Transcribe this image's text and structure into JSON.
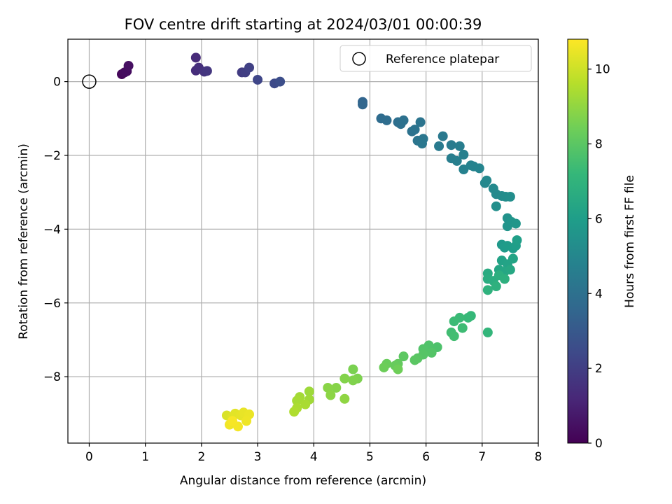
{
  "chart_data": {
    "type": "scatter",
    "title": "FOV centre drift starting at 2024/03/01 00:00:39",
    "xlabel": "Angular distance from reference (arcmin)",
    "ylabel": "Rotation from reference (arcmin)",
    "xlim": [
      -0.38,
      8.0
    ],
    "ylim": [
      -9.8,
      1.15
    ],
    "xticks": [
      0,
      1,
      2,
      3,
      4,
      5,
      6,
      7,
      8
    ],
    "yticks": [
      0,
      -2,
      -4,
      -6,
      -8
    ],
    "grid": true,
    "legend": {
      "position": "top-right",
      "entries": [
        "Reference platepar"
      ]
    },
    "reference_point": {
      "x": 0,
      "y": 0
    },
    "colorbar": {
      "label": "Hours from first FF file",
      "colormap": "viridis",
      "range": [
        0,
        10.8
      ],
      "ticks": [
        0,
        2,
        4,
        6,
        8,
        10
      ]
    },
    "colormap_stops": [
      "#440154",
      "#482878",
      "#3e4989",
      "#31688e",
      "#26828e",
      "#1f9e89",
      "#35b779",
      "#6ece58",
      "#b5de2b",
      "#fde725"
    ],
    "points": [
      {
        "x": 0.58,
        "y": 0.2,
        "t": 0.2
      },
      {
        "x": 0.63,
        "y": 0.25,
        "t": 0.3
      },
      {
        "x": 0.67,
        "y": 0.28,
        "t": 0.35
      },
      {
        "x": 0.7,
        "y": 0.43,
        "t": 0.45
      },
      {
        "x": 1.9,
        "y": 0.65,
        "t": 1.3
      },
      {
        "x": 1.9,
        "y": 0.3,
        "t": 1.4
      },
      {
        "x": 1.95,
        "y": 0.38,
        "t": 1.45
      },
      {
        "x": 2.05,
        "y": 0.27,
        "t": 1.6
      },
      {
        "x": 2.1,
        "y": 0.29,
        "t": 1.7
      },
      {
        "x": 2.72,
        "y": 0.25,
        "t": 1.9
      },
      {
        "x": 2.78,
        "y": 0.25,
        "t": 2.0
      },
      {
        "x": 2.85,
        "y": 0.38,
        "t": 2.1
      },
      {
        "x": 3.0,
        "y": 0.05,
        "t": 2.3
      },
      {
        "x": 3.3,
        "y": -0.05,
        "t": 2.45
      },
      {
        "x": 3.4,
        "y": 0.0,
        "t": 2.6
      },
      {
        "x": 4.87,
        "y": -0.55,
        "t": 3.5
      },
      {
        "x": 4.87,
        "y": -0.62,
        "t": 3.55
      },
      {
        "x": 5.2,
        "y": -1.0,
        "t": 3.8
      },
      {
        "x": 5.3,
        "y": -1.05,
        "t": 3.85
      },
      {
        "x": 5.5,
        "y": -1.1,
        "t": 3.9
      },
      {
        "x": 5.55,
        "y": -1.15,
        "t": 3.95
      },
      {
        "x": 5.6,
        "y": -1.05,
        "t": 4.0
      },
      {
        "x": 5.75,
        "y": -1.35,
        "t": 4.05
      },
      {
        "x": 5.8,
        "y": -1.3,
        "t": 4.1
      },
      {
        "x": 5.9,
        "y": -1.1,
        "t": 4.15
      },
      {
        "x": 5.85,
        "y": -1.6,
        "t": 4.2
      },
      {
        "x": 5.95,
        "y": -1.55,
        "t": 4.25
      },
      {
        "x": 5.93,
        "y": -1.68,
        "t": 4.3
      },
      {
        "x": 6.3,
        "y": -1.48,
        "t": 4.4
      },
      {
        "x": 6.23,
        "y": -1.75,
        "t": 4.45
      },
      {
        "x": 6.45,
        "y": -1.72,
        "t": 4.5
      },
      {
        "x": 6.6,
        "y": -1.75,
        "t": 4.55
      },
      {
        "x": 6.45,
        "y": -2.08,
        "t": 4.6
      },
      {
        "x": 6.55,
        "y": -2.15,
        "t": 4.65
      },
      {
        "x": 6.67,
        "y": -1.98,
        "t": 4.7
      },
      {
        "x": 6.67,
        "y": -2.38,
        "t": 4.75
      },
      {
        "x": 6.8,
        "y": -2.27,
        "t": 4.8
      },
      {
        "x": 6.85,
        "y": -2.3,
        "t": 4.85
      },
      {
        "x": 6.95,
        "y": -2.35,
        "t": 4.9
      },
      {
        "x": 7.05,
        "y": -2.75,
        "t": 5.0
      },
      {
        "x": 7.08,
        "y": -2.68,
        "t": 5.05
      },
      {
        "x": 7.2,
        "y": -2.9,
        "t": 5.1
      },
      {
        "x": 7.25,
        "y": -3.05,
        "t": 5.15
      },
      {
        "x": 7.35,
        "y": -3.1,
        "t": 5.2
      },
      {
        "x": 7.42,
        "y": -3.12,
        "t": 5.25
      },
      {
        "x": 7.5,
        "y": -3.12,
        "t": 5.3
      },
      {
        "x": 7.25,
        "y": -3.38,
        "t": 5.35
      },
      {
        "x": 7.45,
        "y": -3.7,
        "t": 5.5
      },
      {
        "x": 7.45,
        "y": -3.92,
        "t": 5.55
      },
      {
        "x": 7.52,
        "y": -3.8,
        "t": 5.6
      },
      {
        "x": 7.6,
        "y": -3.85,
        "t": 5.65
      },
      {
        "x": 7.35,
        "y": -4.42,
        "t": 5.8
      },
      {
        "x": 7.4,
        "y": -4.5,
        "t": 5.85
      },
      {
        "x": 7.45,
        "y": -4.45,
        "t": 5.9
      },
      {
        "x": 7.55,
        "y": -4.52,
        "t": 5.95
      },
      {
        "x": 7.6,
        "y": -4.45,
        "t": 6.0
      },
      {
        "x": 7.62,
        "y": -4.3,
        "t": 6.05
      },
      {
        "x": 7.35,
        "y": -4.85,
        "t": 6.2
      },
      {
        "x": 7.45,
        "y": -4.95,
        "t": 6.25
      },
      {
        "x": 7.55,
        "y": -4.8,
        "t": 6.3
      },
      {
        "x": 7.3,
        "y": -5.1,
        "t": 6.35
      },
      {
        "x": 7.4,
        "y": -5.15,
        "t": 6.4
      },
      {
        "x": 7.5,
        "y": -5.1,
        "t": 6.45
      },
      {
        "x": 7.1,
        "y": -5.2,
        "t": 6.6
      },
      {
        "x": 7.1,
        "y": -5.35,
        "t": 6.65
      },
      {
        "x": 7.2,
        "y": -5.4,
        "t": 6.7
      },
      {
        "x": 7.3,
        "y": -5.25,
        "t": 6.75
      },
      {
        "x": 7.4,
        "y": -5.35,
        "t": 6.8
      },
      {
        "x": 7.25,
        "y": -5.55,
        "t": 6.85
      },
      {
        "x": 7.1,
        "y": -5.65,
        "t": 6.9
      },
      {
        "x": 7.1,
        "y": -6.8,
        "t": 7.1
      },
      {
        "x": 6.8,
        "y": -6.35,
        "t": 7.2
      },
      {
        "x": 6.75,
        "y": -6.4,
        "t": 7.25
      },
      {
        "x": 6.6,
        "y": -6.4,
        "t": 7.3
      },
      {
        "x": 6.5,
        "y": -6.5,
        "t": 7.35
      },
      {
        "x": 6.65,
        "y": -6.68,
        "t": 7.4
      },
      {
        "x": 6.45,
        "y": -6.8,
        "t": 7.45
      },
      {
        "x": 6.5,
        "y": -6.9,
        "t": 7.5
      },
      {
        "x": 6.2,
        "y": -7.2,
        "t": 7.7
      },
      {
        "x": 6.05,
        "y": -7.15,
        "t": 7.75
      },
      {
        "x": 5.95,
        "y": -7.25,
        "t": 7.8
      },
      {
        "x": 6.1,
        "y": -7.35,
        "t": 7.85
      },
      {
        "x": 5.95,
        "y": -7.4,
        "t": 7.9
      },
      {
        "x": 5.85,
        "y": -7.5,
        "t": 7.95
      },
      {
        "x": 5.8,
        "y": -7.55,
        "t": 8.0
      },
      {
        "x": 5.6,
        "y": -7.45,
        "t": 8.05
      },
      {
        "x": 5.5,
        "y": -7.65,
        "t": 8.2
      },
      {
        "x": 5.45,
        "y": -7.7,
        "t": 8.25
      },
      {
        "x": 5.3,
        "y": -7.65,
        "t": 8.3
      },
      {
        "x": 5.25,
        "y": -7.75,
        "t": 8.35
      },
      {
        "x": 5.5,
        "y": -7.8,
        "t": 8.4
      },
      {
        "x": 4.7,
        "y": -7.8,
        "t": 8.6
      },
      {
        "x": 4.78,
        "y": -8.05,
        "t": 8.65
      },
      {
        "x": 4.7,
        "y": -8.1,
        "t": 8.7
      },
      {
        "x": 4.55,
        "y": -8.05,
        "t": 8.75
      },
      {
        "x": 4.4,
        "y": -8.3,
        "t": 8.8
      },
      {
        "x": 4.25,
        "y": -8.3,
        "t": 8.85
      },
      {
        "x": 4.3,
        "y": -8.5,
        "t": 8.9
      },
      {
        "x": 4.55,
        "y": -8.6,
        "t": 8.95
      },
      {
        "x": 3.92,
        "y": -8.4,
        "t": 9.2
      },
      {
        "x": 3.92,
        "y": -8.62,
        "t": 9.25
      },
      {
        "x": 3.75,
        "y": -8.55,
        "t": 9.3
      },
      {
        "x": 3.7,
        "y": -8.65,
        "t": 9.35
      },
      {
        "x": 3.85,
        "y": -8.75,
        "t": 9.4
      },
      {
        "x": 3.7,
        "y": -8.85,
        "t": 9.45
      },
      {
        "x": 3.65,
        "y": -8.95,
        "t": 9.5
      },
      {
        "x": 2.45,
        "y": -9.05,
        "t": 10.2
      },
      {
        "x": 2.55,
        "y": -9.1,
        "t": 10.3
      },
      {
        "x": 2.6,
        "y": -9.0,
        "t": 10.35
      },
      {
        "x": 2.7,
        "y": -9.05,
        "t": 10.4
      },
      {
        "x": 2.75,
        "y": -8.97,
        "t": 10.45
      },
      {
        "x": 2.85,
        "y": -9.02,
        "t": 10.5
      },
      {
        "x": 2.8,
        "y": -9.2,
        "t": 10.55
      },
      {
        "x": 2.5,
        "y": -9.3,
        "t": 10.6
      },
      {
        "x": 2.65,
        "y": -9.35,
        "t": 10.65
      },
      {
        "x": 2.55,
        "y": -9.2,
        "t": 10.7
      }
    ]
  }
}
